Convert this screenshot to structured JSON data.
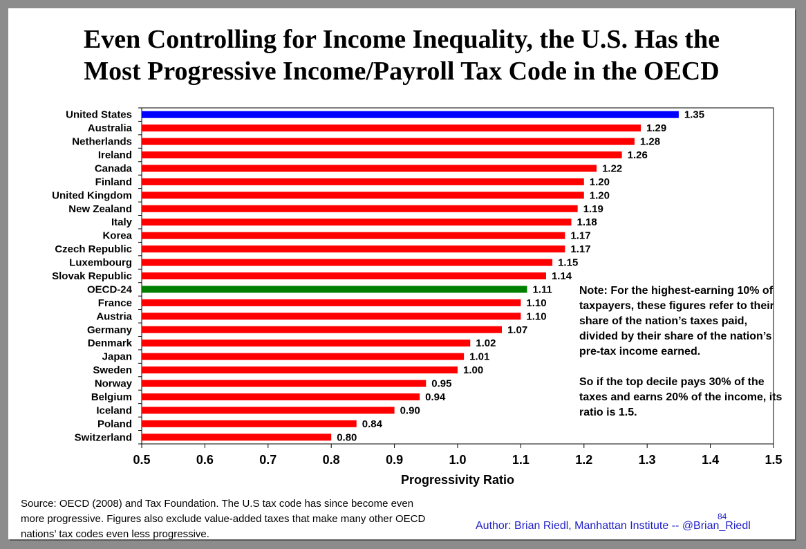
{
  "slide": {
    "title_line1": "Even Controlling for Income Inequality, the U.S. Has the",
    "title_line2": "Most Progressive Income/Payroll Tax Code in the OECD",
    "note_p1": "Note: For the highest-earning 10% of taxpayers, these figures refer to their share of the nation’s taxes paid, divided by their share of the nation’s pre-tax income earned.",
    "note_p2": "So if the top decile pays 30% of the taxes and earns 20% of the income, its ratio is 1.5.",
    "source": "Source: OECD (2008) and Tax Foundation. The U.S tax code has since become even more progressive. Figures also exclude value-added taxes that make many other OECD nations’ tax codes even less progressive.",
    "author": "Author: Brian Riedl, Manhattan Institute -- @Brian_Riedl",
    "page_number": "84"
  },
  "colors": {
    "default_bar": "#ff0000",
    "united_states_bar": "#0000ff",
    "oecd_average_bar": "#008000",
    "author_text": "#1f1fc8"
  },
  "chart_data": {
    "type": "bar",
    "orientation": "horizontal",
    "title": "",
    "xlabel": "Progressivity Ratio",
    "ylabel": "",
    "xlim": [
      0.5,
      1.5
    ],
    "x_ticks": [
      "0.5",
      "0.6",
      "0.7",
      "0.8",
      "0.9",
      "1.0",
      "1.1",
      "1.2",
      "1.3",
      "1.4",
      "1.5"
    ],
    "grid": false,
    "legend": "none",
    "categories": [
      "United States",
      "Australia",
      "Netherlands",
      "Ireland",
      "Canada",
      "Finland",
      "United Kingdom",
      "New Zealand",
      "Italy",
      "Korea",
      "Czech Republic",
      "Luxembourg",
      "Slovak Republic",
      "OECD-24",
      "France",
      "Austria",
      "Germany",
      "Denmark",
      "Japan",
      "Sweden",
      "Norway",
      "Belgium",
      "Iceland",
      "Poland",
      "Switzerland"
    ],
    "values": [
      1.35,
      1.29,
      1.28,
      1.26,
      1.22,
      1.2,
      1.2,
      1.19,
      1.18,
      1.17,
      1.17,
      1.15,
      1.14,
      1.11,
      1.1,
      1.1,
      1.07,
      1.02,
      1.01,
      1.0,
      0.95,
      0.94,
      0.9,
      0.84,
      0.8
    ],
    "value_labels": [
      "1.35",
      "1.29",
      "1.28",
      "1.26",
      "1.22",
      "1.20",
      "1.20",
      "1.19",
      "1.18",
      "1.17",
      "1.17",
      "1.15",
      "1.14",
      "1.11",
      "1.10",
      "1.10",
      "1.07",
      "1.02",
      "1.01",
      "1.00",
      "0.95",
      "0.94",
      "0.90",
      "0.84",
      "0.80"
    ]
  }
}
